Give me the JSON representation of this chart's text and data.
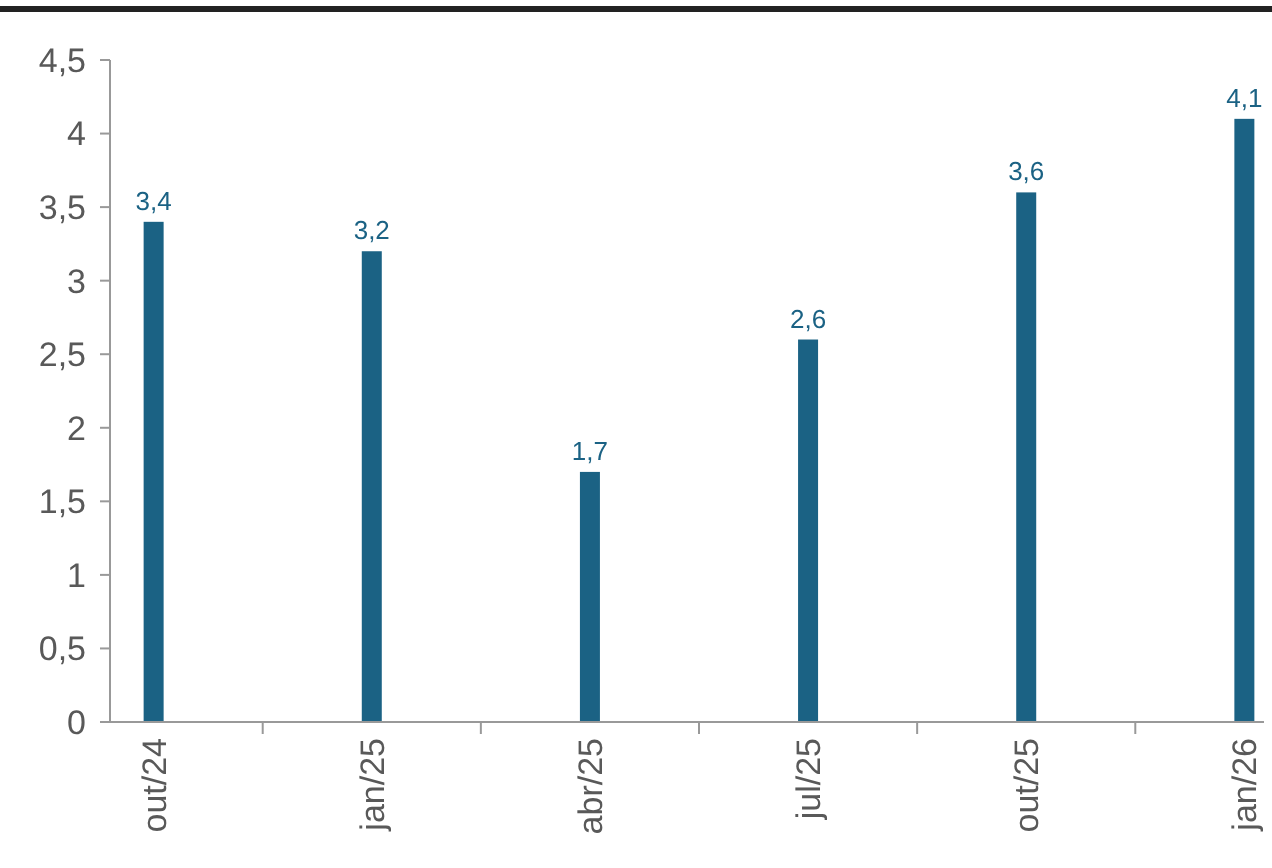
{
  "chart_data": {
    "type": "bar",
    "categories": [
      "out/24",
      "jan/25",
      "abr/25",
      "jul/25",
      "out/25",
      "jan/26"
    ],
    "values": [
      3.4,
      3.2,
      1.7,
      2.6,
      3.6,
      4.1
    ],
    "value_labels": [
      "3,4",
      "3,2",
      "1,7",
      "2,6",
      "3,6",
      "4,1"
    ],
    "color": "#1b6284",
    "ylim": [
      0,
      4.5
    ],
    "yticks": [
      0,
      {
        "value": 0.5,
        "label": "0,5"
      },
      1,
      {
        "value": 1.5,
        "label": "1,5"
      },
      2,
      {
        "value": 2.5,
        "label": "2,5"
      },
      3,
      {
        "value": 3.5,
        "label": "3,5"
      },
      4,
      {
        "value": 4.5,
        "label": "4,5"
      }
    ]
  }
}
